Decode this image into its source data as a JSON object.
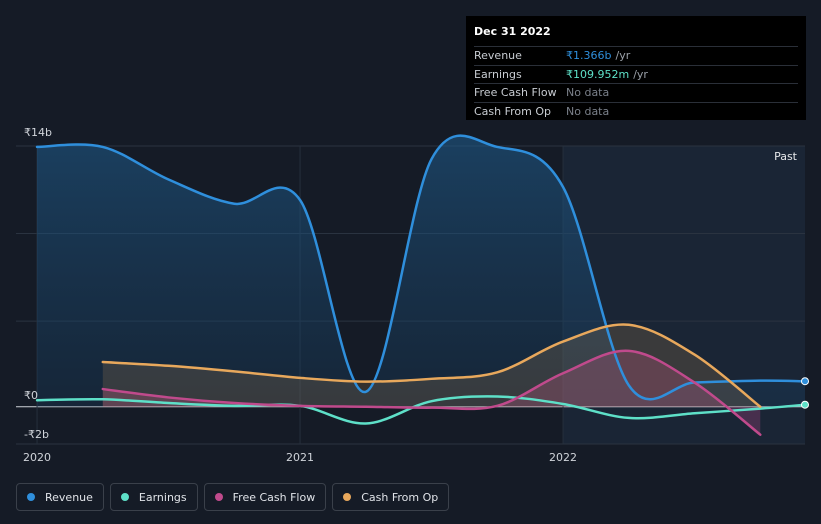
{
  "chart_data": {
    "type": "line",
    "y_ticks": [
      {
        "value": 14,
        "label": "₹14b"
      },
      {
        "value": 0,
        "label": "₹0"
      },
      {
        "value": -2,
        "label": "-₹2b"
      }
    ],
    "ylim": [
      -2,
      14
    ],
    "x_ticks": [
      {
        "value": 2020.0,
        "label": "2020"
      },
      {
        "value": 2021.0,
        "label": "2021"
      },
      {
        "value": 2022.0,
        "label": "2022"
      }
    ],
    "xlim": [
      2019.92,
      2022.92
    ],
    "past_label": "Past",
    "past_start": 2022.0,
    "series": [
      {
        "name": "Revenue",
        "color": "#2f8fdc",
        "fill": true,
        "x": [
          2020.0,
          2020.25,
          2020.5,
          2020.75,
          2021.0,
          2021.25,
          2021.5,
          2021.75,
          2022.0,
          2022.25,
          2022.5,
          2022.75,
          2022.92
        ],
        "y": [
          13.95,
          13.95,
          12.2,
          10.9,
          11.1,
          0.8,
          13.3,
          13.95,
          11.8,
          1.15,
          1.3,
          1.4,
          1.37
        ]
      },
      {
        "name": "Earnings",
        "color": "#5ee0c8",
        "fill": false,
        "x": [
          2020.0,
          2020.25,
          2020.5,
          2020.75,
          2021.0,
          2021.25,
          2021.5,
          2021.75,
          2022.0,
          2022.25,
          2022.5,
          2022.75,
          2022.92
        ],
        "y": [
          0.35,
          0.4,
          0.2,
          0.05,
          0.05,
          -0.9,
          0.3,
          0.55,
          0.15,
          -0.6,
          -0.35,
          -0.1,
          0.11
        ]
      },
      {
        "name": "Free Cash Flow",
        "color": "#c04a8c",
        "fill": true,
        "x": [
          2020.25,
          2020.5,
          2020.75,
          2021.0,
          2021.25,
          2021.5,
          2021.75,
          2022.0,
          2022.25,
          2022.5,
          2022.75
        ],
        "y": [
          0.95,
          0.5,
          0.2,
          0.05,
          0.0,
          -0.05,
          0.05,
          1.8,
          3.0,
          1.3,
          -1.5
        ]
      },
      {
        "name": "Cash From Op",
        "color": "#e8a85c",
        "fill": true,
        "x": [
          2020.25,
          2020.5,
          2020.75,
          2021.0,
          2021.25,
          2021.5,
          2021.75,
          2022.0,
          2022.25,
          2022.5,
          2022.75
        ],
        "y": [
          2.4,
          2.2,
          1.9,
          1.55,
          1.35,
          1.5,
          1.85,
          3.5,
          4.4,
          2.8,
          0.0
        ]
      }
    ]
  },
  "tooltip": {
    "date": "Dec 31 2022",
    "rows": [
      {
        "label": "Revenue",
        "value": "₹1.366b",
        "unit": "/yr",
        "color": "#2f8fdc"
      },
      {
        "label": "Earnings",
        "value": "₹109.952m",
        "unit": "/yr",
        "color": "#5ee0c8"
      },
      {
        "label": "Free Cash Flow",
        "value": "No data",
        "unit": "",
        "color": "#7a808a"
      },
      {
        "label": "Cash From Op",
        "value": "No data",
        "unit": "",
        "color": "#7a808a"
      }
    ]
  },
  "legend": [
    {
      "label": "Revenue",
      "color": "#2f8fdc"
    },
    {
      "label": "Earnings",
      "color": "#5ee0c8"
    },
    {
      "label": "Free Cash Flow",
      "color": "#c04a8c"
    },
    {
      "label": "Cash From Op",
      "color": "#e8a85c"
    }
  ]
}
